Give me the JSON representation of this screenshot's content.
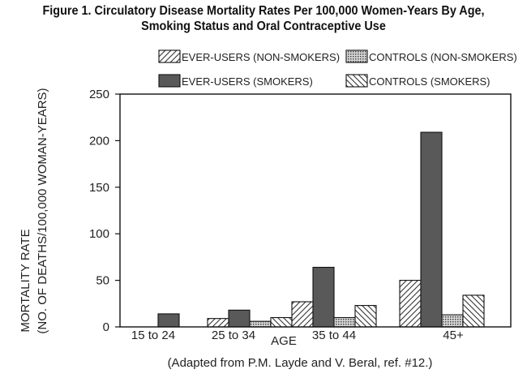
{
  "chart_data": {
    "type": "bar",
    "title_lines": [
      "Figure 1. Circulatory Disease Mortality Rates Per 100,000 Women-Years By Age,",
      "Smoking Status and Oral Contraceptive Use"
    ],
    "xlabel": "AGE",
    "ylabel_lines": [
      "MORTALITY RATE",
      "(NO. OF DEATHS/100,000 WOMAN-YEARS)"
    ],
    "source": "(Adapted from P.M. Layde and V. Beral, ref. #12.)",
    "categories": [
      "15 to 24",
      "25 to 34",
      "35 to 44",
      "45+"
    ],
    "ylim": [
      0,
      250
    ],
    "yticks": [
      0,
      50,
      100,
      150,
      200,
      250
    ],
    "legend_placement": "top",
    "grid": false,
    "series": [
      {
        "name": "EVER-USERS (NON-SMOKERS)",
        "pattern": "diagonal-forward",
        "values": [
          0,
          9,
          27,
          50
        ]
      },
      {
        "name": "EVER-USERS (SMOKERS)",
        "pattern": "solid-dark-gray",
        "color": "#595959",
        "values": [
          14,
          18,
          64,
          209
        ]
      },
      {
        "name": "CONTROLS (NON-SMOKERS)",
        "pattern": "crosshatch-dots",
        "values": [
          0,
          6,
          10,
          13
        ]
      },
      {
        "name": "CONTROLS (SMOKERS)",
        "pattern": "diagonal-backward",
        "values": [
          0,
          10,
          23,
          34
        ]
      }
    ]
  }
}
